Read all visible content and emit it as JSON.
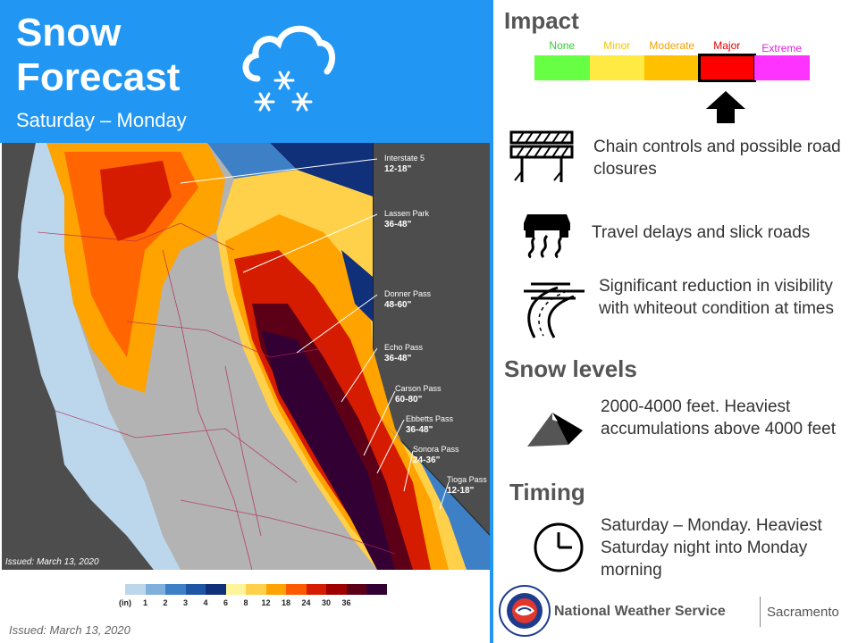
{
  "header": {
    "title_line1": "Snow",
    "title_line2": "Forecast",
    "subtitle": "Saturday – Monday",
    "icon": "snow-cloud-icon"
  },
  "map": {
    "issued_label": "Issued: March 13, 2020",
    "callouts": [
      {
        "name": "Interstate 5",
        "amount": "12-18\""
      },
      {
        "name": "Lassen Park",
        "amount": "36-48\""
      },
      {
        "name": "Donner Pass",
        "amount": "48-60\""
      },
      {
        "name": "Echo Pass",
        "amount": "36-48\""
      },
      {
        "name": "Carson Pass",
        "amount": "60-80\""
      },
      {
        "name": "Ebbetts Pass",
        "amount": "36-48\""
      },
      {
        "name": "Sonora Pass",
        "amount": "24-36\""
      },
      {
        "name": "Tioga Pass",
        "amount": "12-18\""
      }
    ],
    "colors": {
      "land": "#b3b3b3",
      "outside": "#4d4d4d",
      "ocean": "#4d4d4d"
    }
  },
  "legend": {
    "unit_label": "(in)",
    "ticks": [
      "1",
      "2",
      "3",
      "4",
      "6",
      "8",
      "12",
      "18",
      "24",
      "30",
      "36"
    ],
    "colors": [
      "#bcd7ec",
      "#7fb0dc",
      "#3e80c6",
      "#1f55a6",
      "#11307a",
      "#fef59a",
      "#ffd04a",
      "#fea300",
      "#ff5a00",
      "#d51c00",
      "#9e0000",
      "#5c0018",
      "#330033"
    ]
  },
  "issued_bottom": "Issued: March 13, 2020",
  "impact": {
    "title": "Impact",
    "levels": [
      {
        "label": "None",
        "color": "#66ff44",
        "text_color": "#33cc33"
      },
      {
        "label": "Minor",
        "color": "#ffea44",
        "text_color": "#f5c400"
      },
      {
        "label": "Moderate",
        "color": "#ffc000",
        "text_color": "#f0a000"
      },
      {
        "label": "Major",
        "color": "#ff0000",
        "text_color": "#e00000"
      },
      {
        "label": "Extreme",
        "color": "#ff33ff",
        "text_color": "#e020e0"
      }
    ],
    "selected": "Major",
    "items": [
      {
        "icon": "chain-controls-icon",
        "text": "Chain controls and possible road closures"
      },
      {
        "icon": "slick-car-icon",
        "text": "Travel delays and slick roads"
      },
      {
        "icon": "whiteout-road-icon",
        "text": "Significant reduction in visibility with whiteout condition at times"
      }
    ]
  },
  "snow_levels": {
    "title": "Snow levels",
    "icon": "mountain-icon",
    "text": "2000-4000  feet. Heaviest accumulations above 4000 feet"
  },
  "timing": {
    "title": "Timing",
    "icon": "clock-icon",
    "text": "Saturday – Monday. Heaviest Saturday night into Monday morning"
  },
  "footer": {
    "agency": "National Weather Service",
    "office": "Sacramento",
    "logo": "nws-logo-icon"
  }
}
